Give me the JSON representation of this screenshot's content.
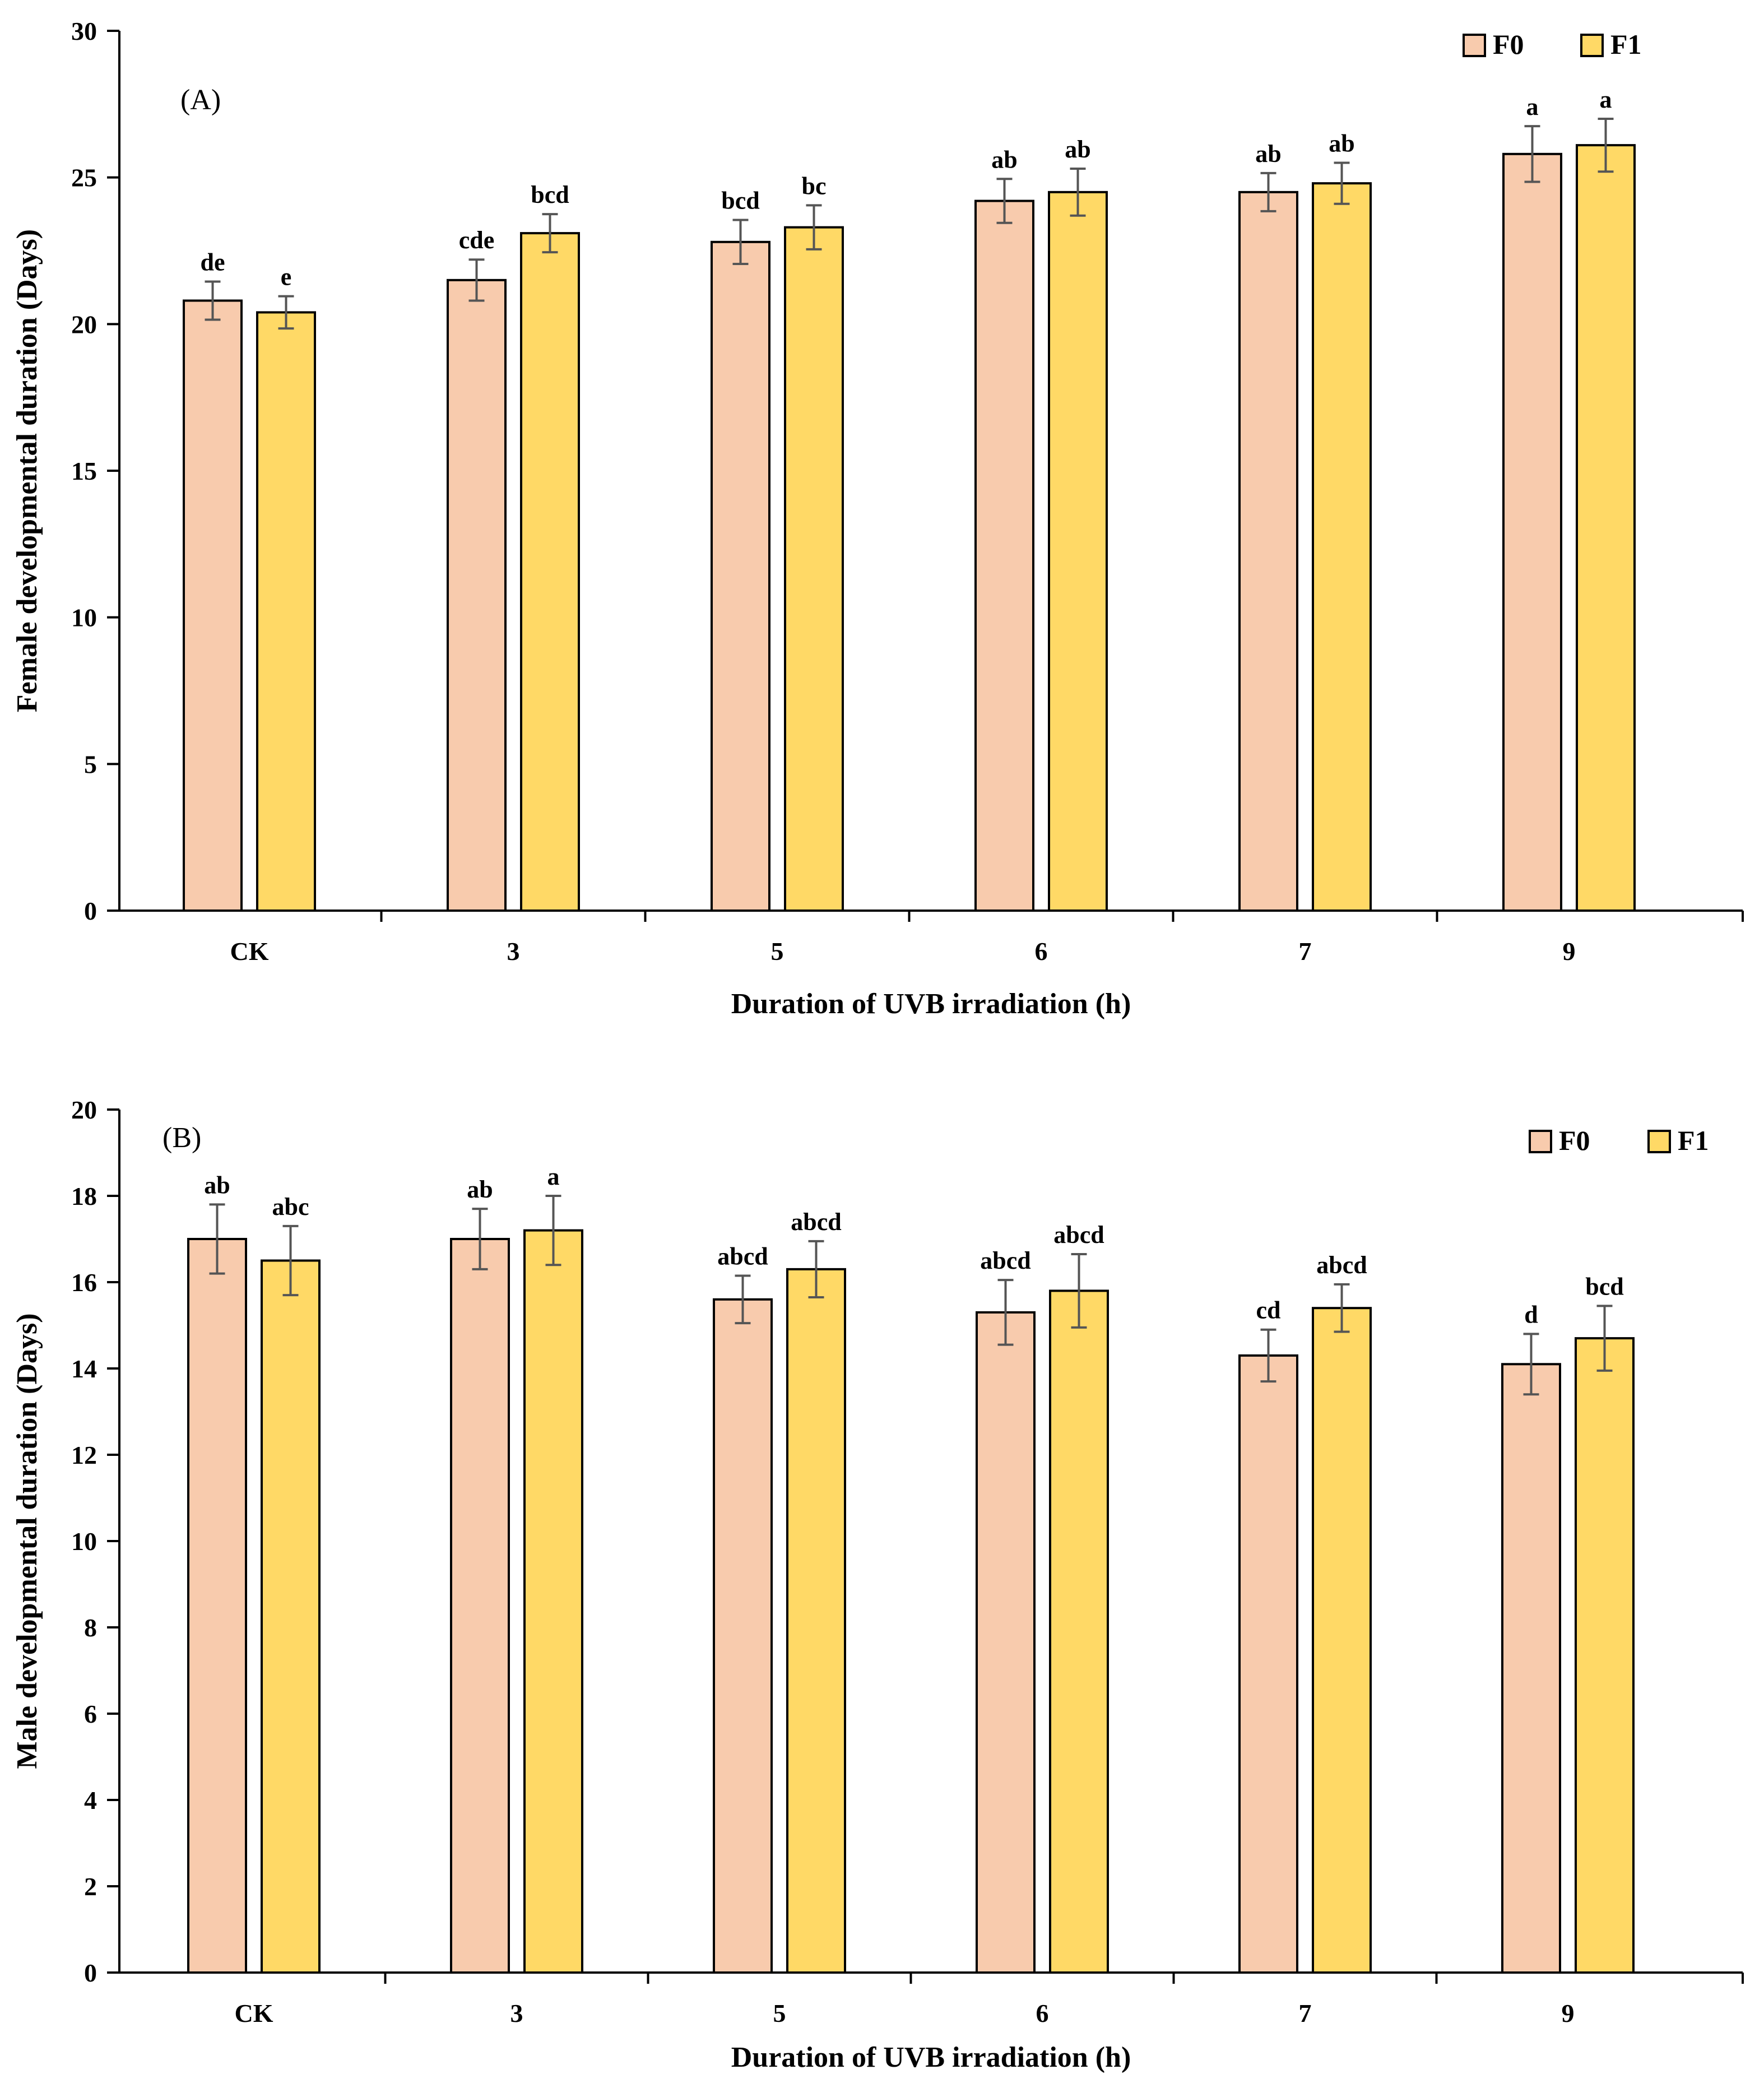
{
  "chart_data": [
    {
      "type": "bar",
      "panel_label": "(A)",
      "title": "",
      "xlabel": "Duration of UVB irradiation (h)",
      "ylabel": "Female developmental duration (Days)",
      "categories": [
        "CK",
        "3",
        "5",
        "6",
        "7",
        "9"
      ],
      "ylim": [
        0,
        30
      ],
      "yticks": [
        0,
        5,
        10,
        15,
        20,
        25,
        30
      ],
      "legend_position": "top-right",
      "series": [
        {
          "name": "F0",
          "color": "#F8CBAD",
          "values": [
            20.8,
            21.5,
            22.8,
            24.2,
            24.5,
            25.8
          ],
          "errors": [
            0.65,
            0.7,
            0.75,
            0.75,
            0.65,
            0.95
          ],
          "letters": [
            "de",
            "cde",
            "bcd",
            "ab",
            "ab",
            "a"
          ]
        },
        {
          "name": "F1",
          "color": "#FFD966",
          "values": [
            20.4,
            23.1,
            23.3,
            24.5,
            24.8,
            26.1
          ],
          "errors": [
            0.55,
            0.65,
            0.75,
            0.8,
            0.7,
            0.9
          ],
          "letters": [
            "e",
            "bcd",
            "bc",
            "ab",
            "ab",
            "a"
          ]
        }
      ]
    },
    {
      "type": "bar",
      "panel_label": "(B)",
      "title": "",
      "xlabel": "Duration of UVB irradiation (h)",
      "ylabel": "Male developmental duration (Days)",
      "categories": [
        "CK",
        "3",
        "5",
        "6",
        "7",
        "9"
      ],
      "ylim": [
        0,
        20
      ],
      "yticks": [
        0,
        2,
        4,
        6,
        8,
        10,
        12,
        14,
        16,
        18,
        20
      ],
      "legend_position": "top-right",
      "series": [
        {
          "name": "F0",
          "color": "#F8CBAD",
          "values": [
            17.0,
            17.0,
            15.6,
            15.3,
            14.3,
            14.1
          ],
          "errors": [
            0.8,
            0.7,
            0.55,
            0.75,
            0.6,
            0.7
          ],
          "letters": [
            "ab",
            "ab",
            "abcd",
            "abcd",
            "cd",
            "d"
          ]
        },
        {
          "name": "F1",
          "color": "#FFD966",
          "values": [
            16.5,
            17.2,
            16.3,
            15.8,
            15.4,
            14.7
          ],
          "errors": [
            0.8,
            0.8,
            0.65,
            0.85,
            0.55,
            0.75
          ],
          "letters": [
            "abc",
            "a",
            "abcd",
            "abcd",
            "abcd",
            "bcd"
          ]
        }
      ]
    }
  ]
}
